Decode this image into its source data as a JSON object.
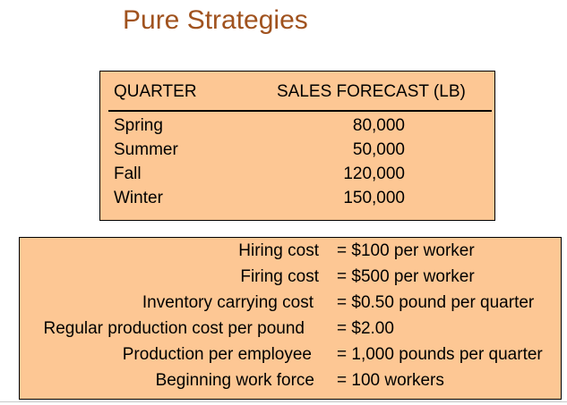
{
  "title": "Pure Strategies",
  "colors": {
    "title": "#a0521e",
    "box_fill": "#fdc794",
    "border": "#000000"
  },
  "forecast": {
    "header_quarter": "QUARTER",
    "header_sales": "SALES FORECAST (LB)",
    "rows": [
      {
        "quarter": "Spring",
        "value": "80,000"
      },
      {
        "quarter": "Summer",
        "value": "50,000"
      },
      {
        "quarter": "Fall",
        "value": "120,000"
      },
      {
        "quarter": "Winter",
        "value": "150,000"
      }
    ]
  },
  "costs": [
    {
      "label": "Hiring cost",
      "value": "= $100 per worker"
    },
    {
      "label": "Firing cost",
      "value": "= $500 per worker"
    },
    {
      "label": "Inventory carrying cost",
      "value": "= $0.50 pound per quarter"
    },
    {
      "label": "Regular production cost per pound",
      "value": "= $2.00"
    },
    {
      "label": "Production per employee",
      "value": "= 1,000 pounds per quarter"
    },
    {
      "label": "Beginning work force",
      "value": "= 100 workers"
    }
  ]
}
